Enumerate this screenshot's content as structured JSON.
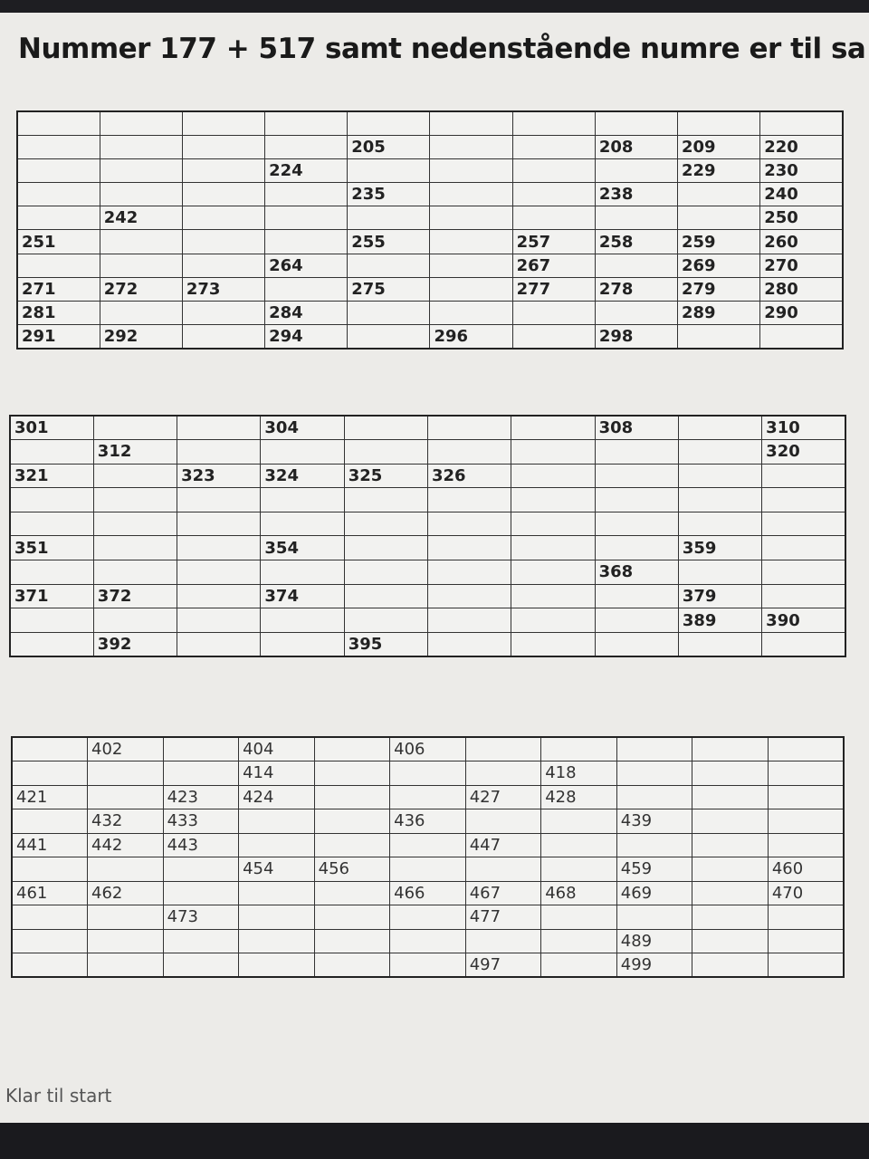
{
  "header": {
    "title": "Nummer 177 + 517 samt nedenstående numre er til sa"
  },
  "tables": [
    {
      "rows": [
        [
          null,
          null,
          null,
          null,
          null,
          null,
          null,
          null,
          null,
          null
        ],
        [
          null,
          null,
          null,
          null,
          "205",
          null,
          null,
          "208",
          "209",
          "220"
        ],
        [
          null,
          null,
          null,
          "224",
          null,
          null,
          null,
          null,
          "229",
          "230"
        ],
        [
          null,
          null,
          null,
          null,
          "235",
          null,
          null,
          "238",
          null,
          "240"
        ],
        [
          null,
          "242",
          null,
          null,
          null,
          null,
          null,
          null,
          null,
          "250"
        ],
        [
          "251",
          null,
          null,
          null,
          "255",
          null,
          "257",
          "258",
          "259",
          "260"
        ],
        [
          null,
          null,
          null,
          "264",
          null,
          null,
          "267",
          null,
          "269",
          "270"
        ],
        [
          "271",
          "272",
          "273",
          null,
          "275",
          null,
          "277",
          "278",
          "279",
          "280"
        ],
        [
          "281",
          null,
          null,
          "284",
          null,
          null,
          null,
          null,
          "289",
          "290"
        ],
        [
          "291",
          "292",
          null,
          "294",
          null,
          "296",
          null,
          "298",
          null,
          null
        ]
      ]
    },
    {
      "rows": [
        [
          "301",
          null,
          null,
          "304",
          null,
          null,
          null,
          "308",
          null,
          "310"
        ],
        [
          null,
          "312",
          null,
          null,
          null,
          null,
          null,
          null,
          null,
          "320"
        ],
        [
          "321",
          null,
          "323",
          "324",
          "325",
          "326",
          null,
          null,
          null,
          null
        ],
        [
          null,
          null,
          null,
          null,
          null,
          null,
          null,
          null,
          null,
          null
        ],
        [
          null,
          null,
          null,
          null,
          null,
          null,
          null,
          null,
          null,
          null
        ],
        [
          "351",
          null,
          null,
          "354",
          null,
          null,
          null,
          null,
          "359",
          null
        ],
        [
          null,
          null,
          null,
          null,
          null,
          null,
          null,
          "368",
          null,
          null
        ],
        [
          "371",
          "372",
          null,
          "374",
          null,
          null,
          null,
          null,
          "379",
          null
        ],
        [
          null,
          null,
          null,
          null,
          null,
          null,
          null,
          null,
          "389",
          "390"
        ],
        [
          null,
          "392",
          null,
          null,
          "395",
          null,
          null,
          null,
          null,
          null
        ]
      ]
    },
    {
      "rows": [
        [
          null,
          "402",
          null,
          "404",
          null,
          "406",
          null,
          null,
          null,
          null,
          null
        ],
        [
          null,
          null,
          null,
          "414",
          null,
          null,
          null,
          "418",
          null,
          null,
          null
        ],
        [
          "421",
          null,
          "423",
          "424",
          null,
          null,
          "427",
          "428",
          null,
          null,
          null
        ],
        [
          null,
          "432",
          "433",
          null,
          null,
          "436",
          null,
          null,
          "439",
          null,
          null
        ],
        [
          "441",
          "442",
          "443",
          null,
          null,
          null,
          "447",
          null,
          null,
          null,
          null
        ],
        [
          null,
          null,
          null,
          "454",
          "456",
          null,
          null,
          null,
          "459",
          null,
          "460"
        ],
        [
          "461",
          "462",
          null,
          null,
          null,
          "466",
          "467",
          "468",
          "469",
          null,
          "470"
        ],
        [
          null,
          null,
          "473",
          null,
          null,
          null,
          "477",
          null,
          null,
          null,
          null
        ],
        [
          null,
          null,
          null,
          null,
          null,
          null,
          null,
          null,
          "489",
          null,
          null
        ],
        [
          null,
          null,
          null,
          null,
          null,
          null,
          "497",
          null,
          "499",
          null,
          null
        ]
      ]
    }
  ],
  "status": "Klar til start"
}
